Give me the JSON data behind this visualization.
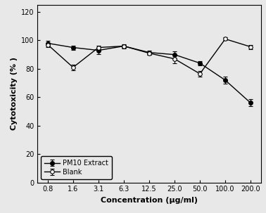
{
  "x_labels": [
    "0.8",
    "1.6",
    "3.1",
    "6.3",
    "12.5",
    "25.0",
    "50.0",
    "100.0",
    "200.0"
  ],
  "pm10_y": [
    98.0,
    95.0,
    93.0,
    96.0,
    91.5,
    90.0,
    84.0,
    72.0,
    56.0
  ],
  "pm10_err": [
    1.5,
    1.5,
    2.5,
    1.5,
    1.5,
    2.5,
    1.5,
    2.5,
    2.5
  ],
  "blank_y": [
    97.0,
    81.0,
    95.0,
    96.0,
    91.0,
    87.0,
    76.5,
    101.0,
    95.5
  ],
  "blank_err": [
    1.5,
    2.0,
    1.5,
    1.0,
    1.0,
    3.0,
    2.0,
    1.0,
    1.5
  ],
  "ylabel": "Cytotoxicity (% )",
  "xlabel": "Concentration (μg/ml)",
  "ylim": [
    0,
    125
  ],
  "yticks": [
    0,
    20,
    40,
    60,
    80,
    100,
    120
  ],
  "legend_pm10": "PM10 Extract",
  "legend_blank": "Blank",
  "line_color": "#000000",
  "marker_pm10": "o",
  "marker_blank": "o",
  "marker_size": 4,
  "bg_color": "#e8e8e8"
}
